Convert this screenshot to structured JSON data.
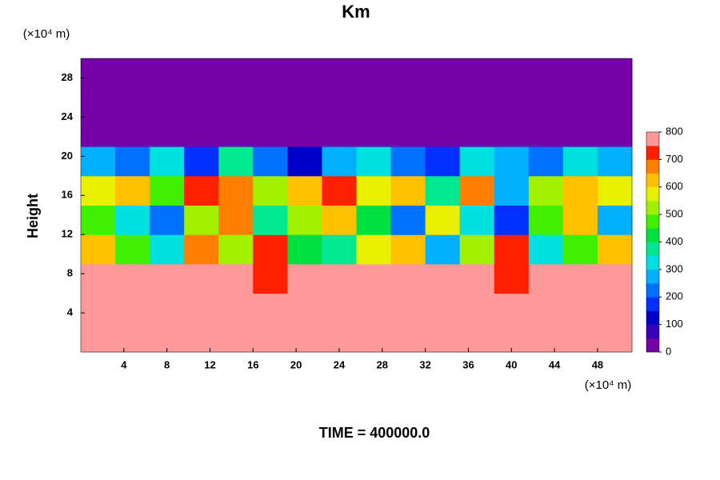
{
  "chart_data": {
    "type": "heatmap",
    "title": "Km",
    "y_unit_label": "(×10⁴ m)",
    "x_unit_label": "(×10⁴ m)",
    "ylabel": "Height",
    "footer": "TIME = 400000.0",
    "xlim": [
      0,
      51.2
    ],
    "ylim": [
      0,
      30
    ],
    "xticks": [
      4,
      8,
      12,
      16,
      20,
      24,
      28,
      32,
      36,
      40,
      44,
      48
    ],
    "yticks": [
      4,
      8,
      12,
      16,
      20,
      24,
      28
    ],
    "colorbar_lim": [
      0,
      800
    ],
    "colorbar_ticks": [
      0,
      100,
      200,
      300,
      400,
      500,
      600,
      700,
      800
    ],
    "colormap": [
      "#7400a8",
      "#3800b8",
      "#0000c8",
      "#0030ff",
      "#0070ff",
      "#00b0ff",
      "#00e0e0",
      "#00e890",
      "#00e040",
      "#40f000",
      "#a0f000",
      "#e8f000",
      "#ffc000",
      "#ff8000",
      "#ff2000",
      "#ff9898"
    ],
    "z": [
      [
        800,
        800,
        800,
        800,
        800,
        800,
        800,
        800,
        800,
        800,
        800,
        800,
        800,
        800,
        800,
        800
      ],
      [
        800,
        800,
        800,
        800,
        800,
        800,
        780,
        800,
        800,
        800,
        800,
        800,
        800,
        780,
        800,
        800
      ],
      [
        800,
        800,
        800,
        800,
        800,
        720,
        800,
        800,
        800,
        800,
        800,
        800,
        720,
        800,
        800,
        800
      ],
      [
        600,
        450,
        300,
        650,
        500,
        700,
        400,
        350,
        550,
        600,
        250,
        500,
        700,
        300,
        450,
        600
      ],
      [
        450,
        300,
        200,
        500,
        650,
        350,
        500,
        600,
        400,
        200,
        550,
        300,
        150,
        450,
        600,
        250
      ],
      [
        550,
        600,
        450,
        700,
        650,
        500,
        600,
        700,
        550,
        600,
        350,
        650,
        250,
        500,
        600,
        550
      ],
      [
        250,
        200,
        300,
        150,
        350,
        200,
        100,
        250,
        300,
        200,
        150,
        300,
        250,
        200,
        300,
        250
      ],
      [
        0,
        0,
        0,
        0,
        0,
        0,
        0,
        0,
        0,
        0,
        0,
        0,
        0,
        0,
        0,
        0
      ],
      [
        0,
        0,
        0,
        0,
        0,
        0,
        0,
        0,
        0,
        0,
        0,
        0,
        0,
        0,
        0,
        0
      ],
      [
        0,
        0,
        0,
        0,
        0,
        0,
        0,
        0,
        0,
        0,
        0,
        0,
        0,
        0,
        0,
        0
      ]
    ]
  }
}
